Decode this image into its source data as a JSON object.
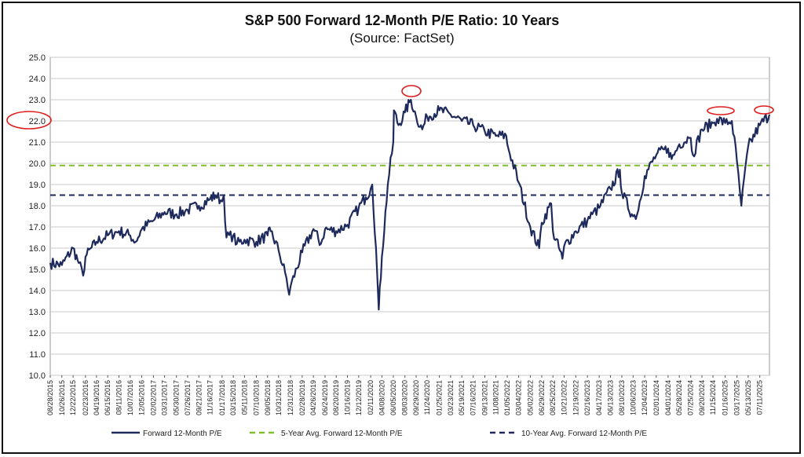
{
  "chart_data": {
    "type": "line",
    "title": "S&P 500 Forward 12-Month P/E Ratio: 10 Years",
    "subtitle": "(Source: FactSet)",
    "ylim": [
      10.0,
      25.0
    ],
    "y_ticks": [
      "10.0",
      "11.0",
      "12.0",
      "13.0",
      "14.0",
      "15.0",
      "16.0",
      "17.0",
      "18.0",
      "19.0",
      "20.0",
      "21.0",
      "22.0",
      "23.0",
      "24.0",
      "25.0"
    ],
    "x_ticks": [
      "08/28/2015",
      "10/26/2015",
      "12/22/2015",
      "02/23/2016",
      "04/19/2016",
      "06/15/2016",
      "08/11/2016",
      "10/07/2016",
      "12/05/2016",
      "02/02/2017",
      "03/31/2017",
      "05/30/2017",
      "07/26/2017",
      "09/21/2017",
      "11/16/2017",
      "01/17/2018",
      "03/15/2018",
      "05/11/2018",
      "07/10/2018",
      "09/05/2018",
      "10/31/2018",
      "12/31/2018",
      "02/28/2019",
      "04/26/2019",
      "06/24/2019",
      "08/20/2019",
      "10/16/2019",
      "12/12/2019",
      "02/11/2020",
      "04/08/2020",
      "06/05/2020",
      "08/03/2020",
      "09/29/2020",
      "11/24/2020",
      "01/25/2021",
      "03/23/2021",
      "05/19/2021",
      "07/16/2021",
      "09/13/2021",
      "11/08/2021",
      "01/05/2022",
      "03/04/2022",
      "05/02/2022",
      "06/29/2022",
      "08/25/2022",
      "10/21/2022",
      "12/19/2022",
      "02/16/2023",
      "04/17/2023",
      "06/13/2023",
      "08/10/2023",
      "10/06/2023",
      "12/04/2023",
      "02/01/2024",
      "04/01/2024",
      "05/28/2024",
      "07/25/2024",
      "09/20/2024",
      "11/15/2024",
      "01/16/2025",
      "03/17/2025",
      "05/13/2025",
      "07/11/2025"
    ],
    "x_range": [
      "08/28/2015",
      "08/29/2025"
    ],
    "grid": true,
    "legend_position": "bottom",
    "series": [
      {
        "name": "Forward 12-Month P/E",
        "color": "#1f2a5c",
        "style": "solid",
        "x": [
          "08/28/2015",
          "10/26/2015",
          "12/22/2015",
          "01/20/2016",
          "02/11/2016",
          "02/23/2016",
          "04/19/2016",
          "06/15/2016",
          "08/11/2016",
          "10/07/2016",
          "11/04/2016",
          "12/05/2016",
          "02/02/2017",
          "03/31/2017",
          "05/30/2017",
          "07/26/2017",
          "09/21/2017",
          "11/16/2017",
          "12/15/2017",
          "01/17/2018",
          "01/26/2018",
          "02/08/2018",
          "03/15/2018",
          "04/02/2018",
          "05/11/2018",
          "07/10/2018",
          "09/05/2018",
          "09/21/2018",
          "10/31/2018",
          "12/10/2018",
          "12/24/2018",
          "12/31/2018",
          "02/28/2019",
          "04/26/2019",
          "06/03/2019",
          "06/24/2019",
          "08/20/2019",
          "10/16/2019",
          "12/12/2019",
          "01/17/2020",
          "02/11/2020",
          "02/19/2020",
          "03/09/2020",
          "03/23/2020",
          "04/08/2020",
          "05/08/2020",
          "06/05/2020",
          "06/08/2020",
          "07/01/2020",
          "08/03/2020",
          "09/02/2020",
          "09/29/2020",
          "10/30/2020",
          "11/24/2020",
          "01/25/2021",
          "03/23/2021",
          "05/19/2021",
          "07/16/2021",
          "09/13/2021",
          "11/08/2021",
          "12/31/2021",
          "01/05/2022",
          "03/04/2022",
          "05/02/2022",
          "06/16/2022",
          "06/29/2022",
          "08/16/2022",
          "08/25/2022",
          "10/12/2022",
          "10/21/2022",
          "12/19/2022",
          "02/16/2023",
          "03/13/2023",
          "04/17/2023",
          "06/13/2023",
          "07/31/2023",
          "08/10/2023",
          "10/06/2023",
          "10/27/2023",
          "12/04/2023",
          "02/01/2024",
          "04/01/2024",
          "04/19/2024",
          "05/28/2024",
          "07/16/2024",
          "07/25/2024",
          "08/05/2024",
          "09/20/2024",
          "11/15/2024",
          "12/06/2024",
          "01/16/2025",
          "02/19/2025",
          "03/17/2025",
          "04/08/2025",
          "05/13/2025",
          "07/11/2025",
          "08/29/2025"
        ],
        "values": [
          15.3,
          15.2,
          16.0,
          15.3,
          14.7,
          15.6,
          16.3,
          16.6,
          16.8,
          16.6,
          16.3,
          16.9,
          17.3,
          17.7,
          17.6,
          17.8,
          18.0,
          18.3,
          18.5,
          18.2,
          18.5,
          16.5,
          16.6,
          16.2,
          16.4,
          16.3,
          16.6,
          16.8,
          15.9,
          14.6,
          13.8,
          14.2,
          15.8,
          16.9,
          16.2,
          16.9,
          16.8,
          17.1,
          17.9,
          18.4,
          18.8,
          19.0,
          16.0,
          13.1,
          15.6,
          19.0,
          21.0,
          22.5,
          21.8,
          22.4,
          23.0,
          22.2,
          21.6,
          22.2,
          22.5,
          22.3,
          22.0,
          21.8,
          21.5,
          21.3,
          21.3,
          20.9,
          19.1,
          17.0,
          16.0,
          17.2,
          18.1,
          16.8,
          15.5,
          16.1,
          16.8,
          17.3,
          17.6,
          17.9,
          18.8,
          19.7,
          18.6,
          17.5,
          17.6,
          19.4,
          20.4,
          20.7,
          20.2,
          20.9,
          21.2,
          21.2,
          20.4,
          21.6,
          21.9,
          22.1,
          21.9,
          22.0,
          20.1,
          18.0,
          20.8,
          21.8,
          22.3
        ]
      },
      {
        "name": "5-Year Avg. Forward 12-Month P/E",
        "color": "#7fbf2a",
        "style": "dashed",
        "value": 19.9
      },
      {
        "name": "10-Year Avg. Forward 12-Month P/E",
        "color": "#1f2a5c",
        "style": "dashed",
        "value": 18.5
      }
    ]
  }
}
